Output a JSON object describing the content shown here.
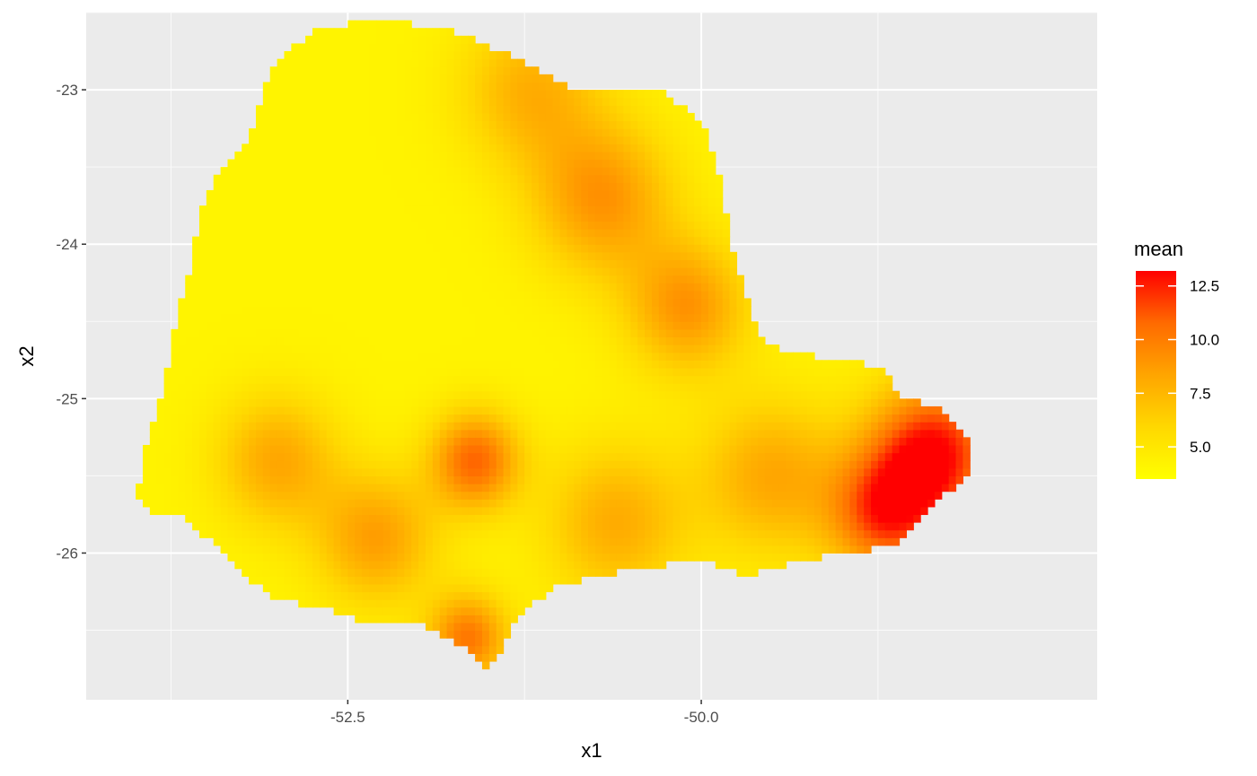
{
  "chart_data": {
    "type": "heatmap",
    "title": "",
    "xlabel": "x1",
    "ylabel": "x2",
    "xlim": [
      -54.35,
      -47.2
    ],
    "ylim": [
      -26.95,
      -22.5
    ],
    "x_ticks": [
      -52.5,
      -50.0
    ],
    "x_tick_labels": [
      "-52.5",
      "-50.0"
    ],
    "x_minor_ticks": [
      -53.75,
      -51.25,
      -48.75
    ],
    "y_ticks": [
      -23,
      -24,
      -25,
      -26
    ],
    "y_tick_labels": [
      "-23",
      "-24",
      "-25",
      "-26"
    ],
    "y_minor_ticks": [
      -22.5,
      -23.5,
      -24.5,
      -25.5,
      -26.5
    ],
    "grid": true,
    "legend": {
      "title": "mean",
      "position": "right",
      "min": 3.5,
      "max": 13.2,
      "breaks": [
        5.0,
        7.5,
        10.0,
        12.5
      ],
      "break_labels": [
        "5.0",
        "7.5",
        "10.0",
        "12.5"
      ],
      "colors": [
        "#ffff00",
        "#ffd800",
        "#ffa500",
        "#ff6a00",
        "#ff0000"
      ]
    },
    "region_outline": [
      [
        -54.0,
        -25.65
      ],
      [
        -53.9,
        -25.2
      ],
      [
        -53.8,
        -24.9
      ],
      [
        -53.7,
        -24.4
      ],
      [
        -53.6,
        -24.1
      ],
      [
        -53.55,
        -23.8
      ],
      [
        -53.4,
        -23.5
      ],
      [
        -53.2,
        -23.3
      ],
      [
        -53.1,
        -23.0
      ],
      [
        -53.0,
        -22.8
      ],
      [
        -52.7,
        -22.6
      ],
      [
        -52.3,
        -22.55
      ],
      [
        -51.8,
        -22.6
      ],
      [
        -51.3,
        -22.8
      ],
      [
        -50.9,
        -23.0
      ],
      [
        -50.3,
        -23.0
      ],
      [
        -50.0,
        -23.2
      ],
      [
        -49.85,
        -23.6
      ],
      [
        -49.8,
        -24.0
      ],
      [
        -49.7,
        -24.3
      ],
      [
        -49.6,
        -24.6
      ],
      [
        -49.4,
        -24.7
      ],
      [
        -49.0,
        -24.75
      ],
      [
        -48.7,
        -24.8
      ],
      [
        -48.6,
        -25.0
      ],
      [
        -48.3,
        -25.05
      ],
      [
        -48.1,
        -25.3
      ],
      [
        -48.1,
        -25.5
      ],
      [
        -48.4,
        -25.7
      ],
      [
        -48.6,
        -25.95
      ],
      [
        -49.0,
        -26.0
      ],
      [
        -49.3,
        -26.05
      ],
      [
        -49.7,
        -26.15
      ],
      [
        -50.0,
        -26.05
      ],
      [
        -50.5,
        -26.1
      ],
      [
        -51.0,
        -26.2
      ],
      [
        -51.3,
        -26.4
      ],
      [
        -51.4,
        -26.6
      ],
      [
        -51.5,
        -26.75
      ],
      [
        -51.7,
        -26.6
      ],
      [
        -52.0,
        -26.45
      ],
      [
        -52.4,
        -26.45
      ],
      [
        -52.7,
        -26.35
      ],
      [
        -53.0,
        -26.3
      ],
      [
        -53.3,
        -26.1
      ],
      [
        -53.5,
        -25.9
      ],
      [
        -53.7,
        -25.75
      ],
      [
        -53.9,
        -25.75
      ]
    ],
    "hotspots": [
      {
        "x": -48.35,
        "y": -25.35,
        "value": 13.0,
        "spread": 0.32
      },
      {
        "x": -48.7,
        "y": -25.75,
        "value": 11.2,
        "spread": 0.28
      },
      {
        "x": -51.6,
        "y": -25.4,
        "value": 10.8,
        "spread": 0.22
      },
      {
        "x": -51.65,
        "y": -26.55,
        "value": 10.2,
        "spread": 0.2
      },
      {
        "x": -50.7,
        "y": -23.7,
        "value": 9.0,
        "spread": 0.35
      },
      {
        "x": -50.1,
        "y": -24.4,
        "value": 9.0,
        "spread": 0.3
      },
      {
        "x": -52.3,
        "y": -25.9,
        "value": 8.6,
        "spread": 0.3
      },
      {
        "x": -53.0,
        "y": -25.4,
        "value": 8.2,
        "spread": 0.3
      },
      {
        "x": -51.2,
        "y": -23.0,
        "value": 7.8,
        "spread": 0.35
      },
      {
        "x": -49.5,
        "y": -25.5,
        "value": 8.2,
        "spread": 0.35
      },
      {
        "x": -50.6,
        "y": -25.8,
        "value": 8.0,
        "spread": 0.35
      }
    ],
    "base_value": 4.2
  }
}
